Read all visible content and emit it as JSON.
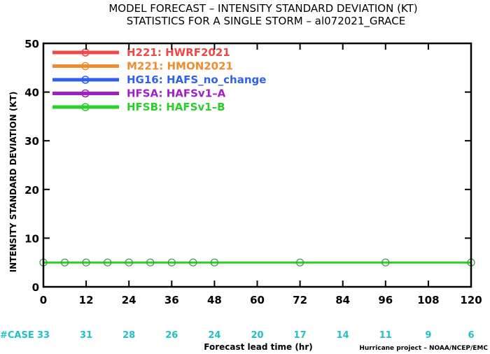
{
  "title_line1": "MODEL FORECAST – INTENSITY STANDARD DEVIATION (KT)",
  "title_line2": "STATISTICS FOR A SINGLE STORM – al072021_GRACE",
  "credit": "Hurricane project – NOAA/NCEP/EMC",
  "case_label": "#CASE",
  "colors": {
    "case_text": "#20c0c8"
  },
  "chart_data": {
    "type": "line",
    "title": "MODEL FORECAST – INTENSITY STANDARD DEVIATION (KT)",
    "subtitle": "STATISTICS FOR A SINGLE STORM – al072021_GRACE",
    "xlabel": "Forecast lead time (hr)",
    "ylabel": "INTENSITY STANDARD DEVIATION (KT)",
    "xlim": [
      0,
      120
    ],
    "ylim": [
      0,
      50
    ],
    "xticks": [
      0,
      12,
      24,
      36,
      48,
      60,
      72,
      84,
      96,
      108,
      120
    ],
    "yticks": [
      0,
      10,
      20,
      30,
      40,
      50
    ],
    "grid": false,
    "legend_position": "top-left",
    "series": [
      {
        "name": "H221: HWRF2021",
        "color": "#f04848",
        "x": [],
        "y": []
      },
      {
        "name": "M221: HMON2021",
        "color": "#f08c30",
        "x": [],
        "y": []
      },
      {
        "name": "HG16: HAFS_no_change",
        "color": "#3060f0",
        "x": [],
        "y": []
      },
      {
        "name": "HFSA: HAFSv1–A",
        "color": "#a020c8",
        "x": [],
        "y": []
      },
      {
        "name": "HFSB: HAFSv1–B",
        "color": "#28d028",
        "x": [
          0,
          6,
          12,
          18,
          24,
          30,
          36,
          42,
          48,
          72,
          96,
          120
        ],
        "y": [
          5,
          5,
          5,
          5,
          5,
          5,
          5,
          5,
          5,
          5,
          5,
          5
        ]
      }
    ],
    "case_counts": {
      "x": [
        0,
        12,
        24,
        36,
        48,
        60,
        72,
        84,
        96,
        108,
        120
      ],
      "counts": [
        33,
        31,
        28,
        26,
        24,
        20,
        17,
        14,
        11,
        9,
        6
      ]
    }
  }
}
